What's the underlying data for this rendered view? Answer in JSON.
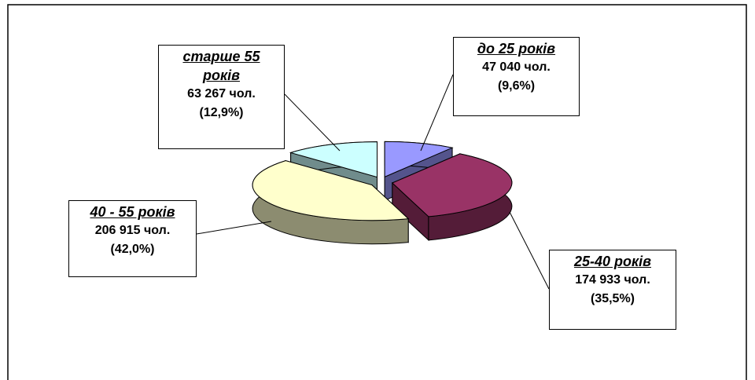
{
  "chart_data": {
    "type": "pie3d",
    "categories": [
      "до 25 років",
      "25-40 років",
      "40 - 55 років",
      "старше 55 років"
    ],
    "values": [
      47040,
      174933,
      206915,
      63267
    ],
    "value_labels": [
      "47 040 чол.",
      "174 933 чол.",
      "206 915 чол.",
      "63 267 чол."
    ],
    "percentages": [
      9.6,
      35.5,
      42.0,
      12.9
    ],
    "percentage_labels": [
      "(9,6%)",
      "(35,5%)",
      "(42,0%)",
      "(12,9%)"
    ],
    "colors": [
      "#9999ff",
      "#993366",
      "#ffffcc",
      "#ccffff"
    ]
  }
}
